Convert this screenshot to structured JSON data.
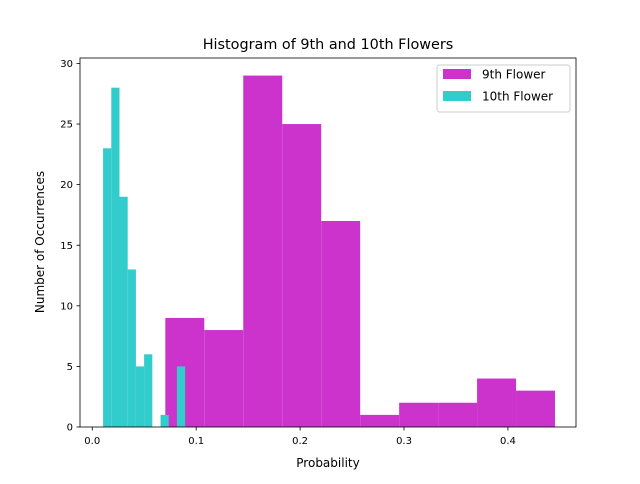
{
  "chart_data": {
    "type": "bar",
    "title": "Histogram of 9th and 10th Flowers",
    "xlabel": "Probability",
    "ylabel": "Number of Occurrences",
    "xlim": [
      -0.0118,
      0.4655
    ],
    "ylim": [
      0,
      30.45
    ],
    "xticks": [
      0.0,
      0.1,
      0.2,
      0.3,
      0.4
    ],
    "xtick_labels": [
      "0.0",
      "0.1",
      "0.2",
      "0.3",
      "0.4"
    ],
    "yticks": [
      0,
      5,
      10,
      15,
      20,
      25,
      30
    ],
    "ytick_labels": [
      "0",
      "5",
      "10",
      "15",
      "20",
      "25",
      "30"
    ],
    "grid": false,
    "legend_position": "top-right",
    "series": [
      {
        "name": "9th Flower",
        "color": "#cc33cc",
        "bins": [
          {
            "x0": 0.0703,
            "x1": 0.1078,
            "count": 9
          },
          {
            "x0": 0.1078,
            "x1": 0.1453,
            "count": 8
          },
          {
            "x0": 0.1453,
            "x1": 0.1828,
            "count": 29
          },
          {
            "x0": 0.1828,
            "x1": 0.2203,
            "count": 25
          },
          {
            "x0": 0.2203,
            "x1": 0.2578,
            "count": 17
          },
          {
            "x0": 0.2578,
            "x1": 0.2953,
            "count": 1
          },
          {
            "x0": 0.2953,
            "x1": 0.3328,
            "count": 2
          },
          {
            "x0": 0.3328,
            "x1": 0.3703,
            "count": 2
          },
          {
            "x0": 0.3703,
            "x1": 0.4078,
            "count": 4
          },
          {
            "x0": 0.4078,
            "x1": 0.4453,
            "count": 3
          }
        ]
      },
      {
        "name": "10th Flower",
        "color": "#33cccc",
        "bins": [
          {
            "x0": 0.0104,
            "x1": 0.0183,
            "count": 23
          },
          {
            "x0": 0.0183,
            "x1": 0.0262,
            "count": 28
          },
          {
            "x0": 0.0262,
            "x1": 0.0341,
            "count": 19
          },
          {
            "x0": 0.0341,
            "x1": 0.042,
            "count": 13
          },
          {
            "x0": 0.042,
            "x1": 0.0499,
            "count": 5
          },
          {
            "x0": 0.0499,
            "x1": 0.0578,
            "count": 6
          },
          {
            "x0": 0.0578,
            "x1": 0.0657,
            "count": 0
          },
          {
            "x0": 0.0657,
            "x1": 0.0736,
            "count": 1
          },
          {
            "x0": 0.0736,
            "x1": 0.0815,
            "count": 0
          },
          {
            "x0": 0.0815,
            "x1": 0.0894,
            "count": 5
          }
        ]
      }
    ]
  }
}
